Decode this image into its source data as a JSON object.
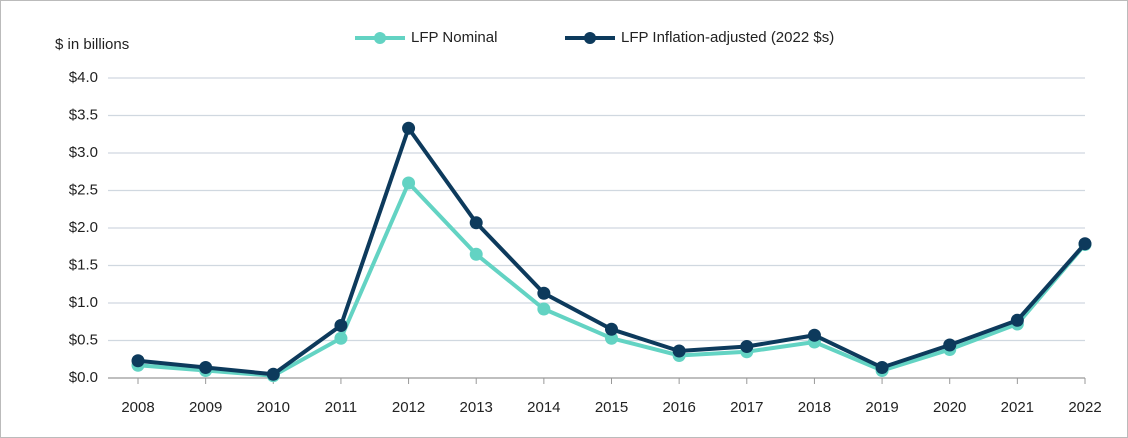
{
  "chart_data": {
    "type": "line",
    "y_label": "$ in billions",
    "categories": [
      "2008",
      "2009",
      "2010",
      "2011",
      "2012",
      "2013",
      "2014",
      "2015",
      "2016",
      "2017",
      "2018",
      "2019",
      "2020",
      "2021",
      "2022"
    ],
    "series": [
      {
        "name": "LFP Nominal",
        "color": "#63d3c3",
        "values": [
          0.17,
          0.1,
          0.03,
          0.53,
          2.6,
          1.65,
          0.92,
          0.53,
          0.3,
          0.35,
          0.48,
          0.1,
          0.38,
          0.72,
          1.78
        ]
      },
      {
        "name": "LFP Inflation-adjusted (2022 $s)",
        "color": "#0d3a5c",
        "values": [
          0.23,
          0.14,
          0.05,
          0.7,
          3.33,
          2.07,
          1.13,
          0.65,
          0.36,
          0.42,
          0.57,
          0.14,
          0.44,
          0.77,
          1.79
        ]
      }
    ],
    "ylim": [
      0,
      4
    ],
    "yticks": [
      {
        "value": 0,
        "label": "$0.0"
      },
      {
        "value": 0.5,
        "label": "$0.5"
      },
      {
        "value": 1,
        "label": "$1.0"
      },
      {
        "value": 1.5,
        "label": "$1.5"
      },
      {
        "value": 2,
        "label": "$2.0"
      },
      {
        "value": 2.5,
        "label": "$2.5"
      },
      {
        "value": 3,
        "label": "$3.0"
      },
      {
        "value": 3.5,
        "label": "$3.5"
      },
      {
        "value": 4,
        "label": "$4.0"
      }
    ],
    "grid": true,
    "legend": "top"
  }
}
